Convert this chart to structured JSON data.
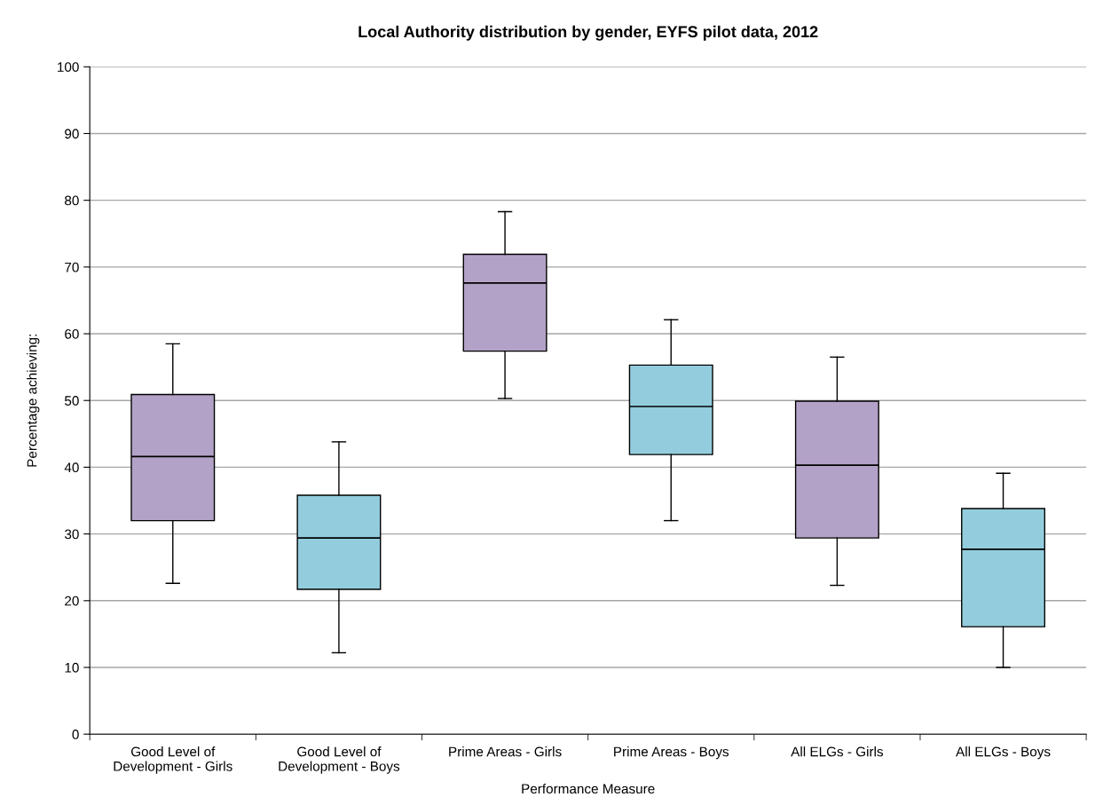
{
  "chart_data": {
    "type": "box",
    "title": "Local Authority distribution by gender, EYFS pilot data, 2012",
    "xlabel": "Performance Measure",
    "ylabel": "Percentage achieving:",
    "categories": [
      "Good Level of\nDevelopment - Girls",
      "Good Level of\nDevelopment - Boys",
      "Prime Areas - Girls",
      "Prime Areas - Boys",
      "All ELGs - Girls",
      "All ELGs - Boys"
    ],
    "colors": [
      "#b3a2c7",
      "#93cddd",
      "#b3a2c7",
      "#93cddd",
      "#b3a2c7",
      "#93cddd"
    ],
    "boxes": [
      {
        "low": 22.6,
        "q1": 32.0,
        "median": 41.6,
        "q3": 50.9,
        "high": 58.5
      },
      {
        "low": 12.2,
        "q1": 21.7,
        "median": 29.4,
        "q3": 35.8,
        "high": 43.8
      },
      {
        "low": 50.3,
        "q1": 57.4,
        "median": 67.6,
        "q3": 71.9,
        "high": 78.3
      },
      {
        "low": 32.0,
        "q1": 41.9,
        "median": 49.1,
        "q3": 55.3,
        "high": 62.1
      },
      {
        "low": 22.3,
        "q1": 29.4,
        "median": 40.3,
        "q3": 49.9,
        "high": 56.5
      },
      {
        "low": 10.0,
        "q1": 16.1,
        "median": 27.7,
        "q3": 33.8,
        "high": 39.1
      }
    ],
    "ylim": [
      0,
      100
    ],
    "yticks": [
      0,
      10,
      20,
      30,
      40,
      50,
      60,
      70,
      80,
      90,
      100
    ],
    "grid": "y"
  }
}
